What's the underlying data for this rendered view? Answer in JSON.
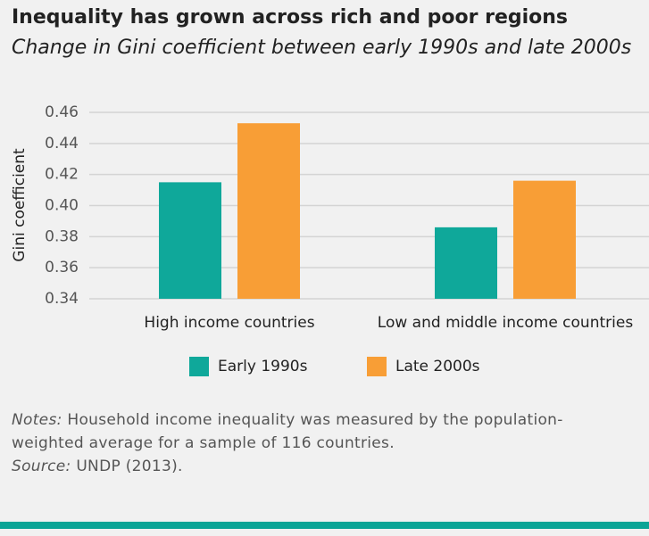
{
  "chart_data": {
    "type": "bar",
    "title": "Inequality has grown across rich and poor regions",
    "subtitle": "Change in Gini coefficient between early 1990s and late 2000s",
    "y_label": "Gini coefficient",
    "categories": [
      "High income countries",
      "Low and middle income countries"
    ],
    "series": [
      {
        "name": "Early 1990s",
        "color": "#0fa89a",
        "values": [
          0.415,
          0.386
        ]
      },
      {
        "name": "Late 2000s",
        "color": "#f89e36",
        "values": [
          0.453,
          0.416
        ]
      }
    ],
    "ylim": [
      0.34,
      0.46
    ],
    "yticks": [
      0.34,
      0.36,
      0.38,
      {
        "value": 0.4,
        "label": "0.40"
      },
      0.42,
      0.44,
      0.46
    ],
    "grid": true,
    "legend": "bottom"
  },
  "notes": {
    "notes_label": "Notes:",
    "notes_text": "Household income inequality was measured by the population-weighted average for a sample of 116 countries.",
    "source_label": "Source:",
    "source_text": "UNDP (2013)."
  }
}
